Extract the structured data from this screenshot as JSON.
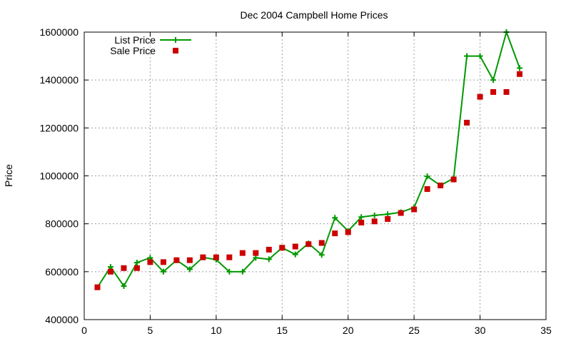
{
  "chart_data": {
    "type": "line",
    "title": "Dec 2004 Campbell Home Prices",
    "xlabel": "",
    "ylabel": "Price",
    "xlim": [
      0,
      35
    ],
    "ylim": [
      400000,
      1600000
    ],
    "x_ticks": [
      0,
      5,
      10,
      15,
      20,
      25,
      30,
      35
    ],
    "y_ticks": [
      400000,
      600000,
      800000,
      1000000,
      1200000,
      1400000,
      1600000
    ],
    "grid": true,
    "legend_position": "top-left",
    "series": [
      {
        "name": "List Price",
        "style": "line-with-plus-markers",
        "color": "#009900",
        "x": [
          1,
          2,
          3,
          4,
          5,
          6,
          7,
          8,
          9,
          10,
          11,
          12,
          13,
          14,
          15,
          16,
          17,
          18,
          19,
          20,
          21,
          22,
          23,
          24,
          25,
          26,
          27,
          28,
          29,
          30,
          31,
          32,
          33
        ],
        "values": [
          535000,
          620000,
          540000,
          638000,
          658000,
          600000,
          648000,
          610000,
          660000,
          650000,
          600000,
          600000,
          658000,
          652000,
          700000,
          672000,
          718000,
          670000,
          825000,
          770000,
          828000,
          835000,
          840000,
          848000,
          868000,
          998000,
          960000,
          990000,
          1500000,
          1500000,
          1400000,
          1600000,
          1450000
        ]
      },
      {
        "name": "Sale Price",
        "style": "square-markers",
        "color": "#cc0000",
        "x": [
          1,
          2,
          3,
          4,
          5,
          6,
          7,
          8,
          9,
          10,
          11,
          12,
          13,
          14,
          15,
          16,
          17,
          18,
          19,
          20,
          21,
          22,
          23,
          24,
          25,
          26,
          27,
          28,
          29,
          30,
          31,
          32,
          33
        ],
        "values": [
          535000,
          600000,
          615000,
          615000,
          640000,
          640000,
          648000,
          648000,
          660000,
          660000,
          660000,
          678000,
          678000,
          692000,
          700000,
          705000,
          715000,
          720000,
          760000,
          765000,
          805000,
          810000,
          820000,
          845000,
          860000,
          945000,
          960000,
          985000,
          1222000,
          1330000,
          1350000,
          1350000,
          1425000
        ]
      }
    ]
  }
}
